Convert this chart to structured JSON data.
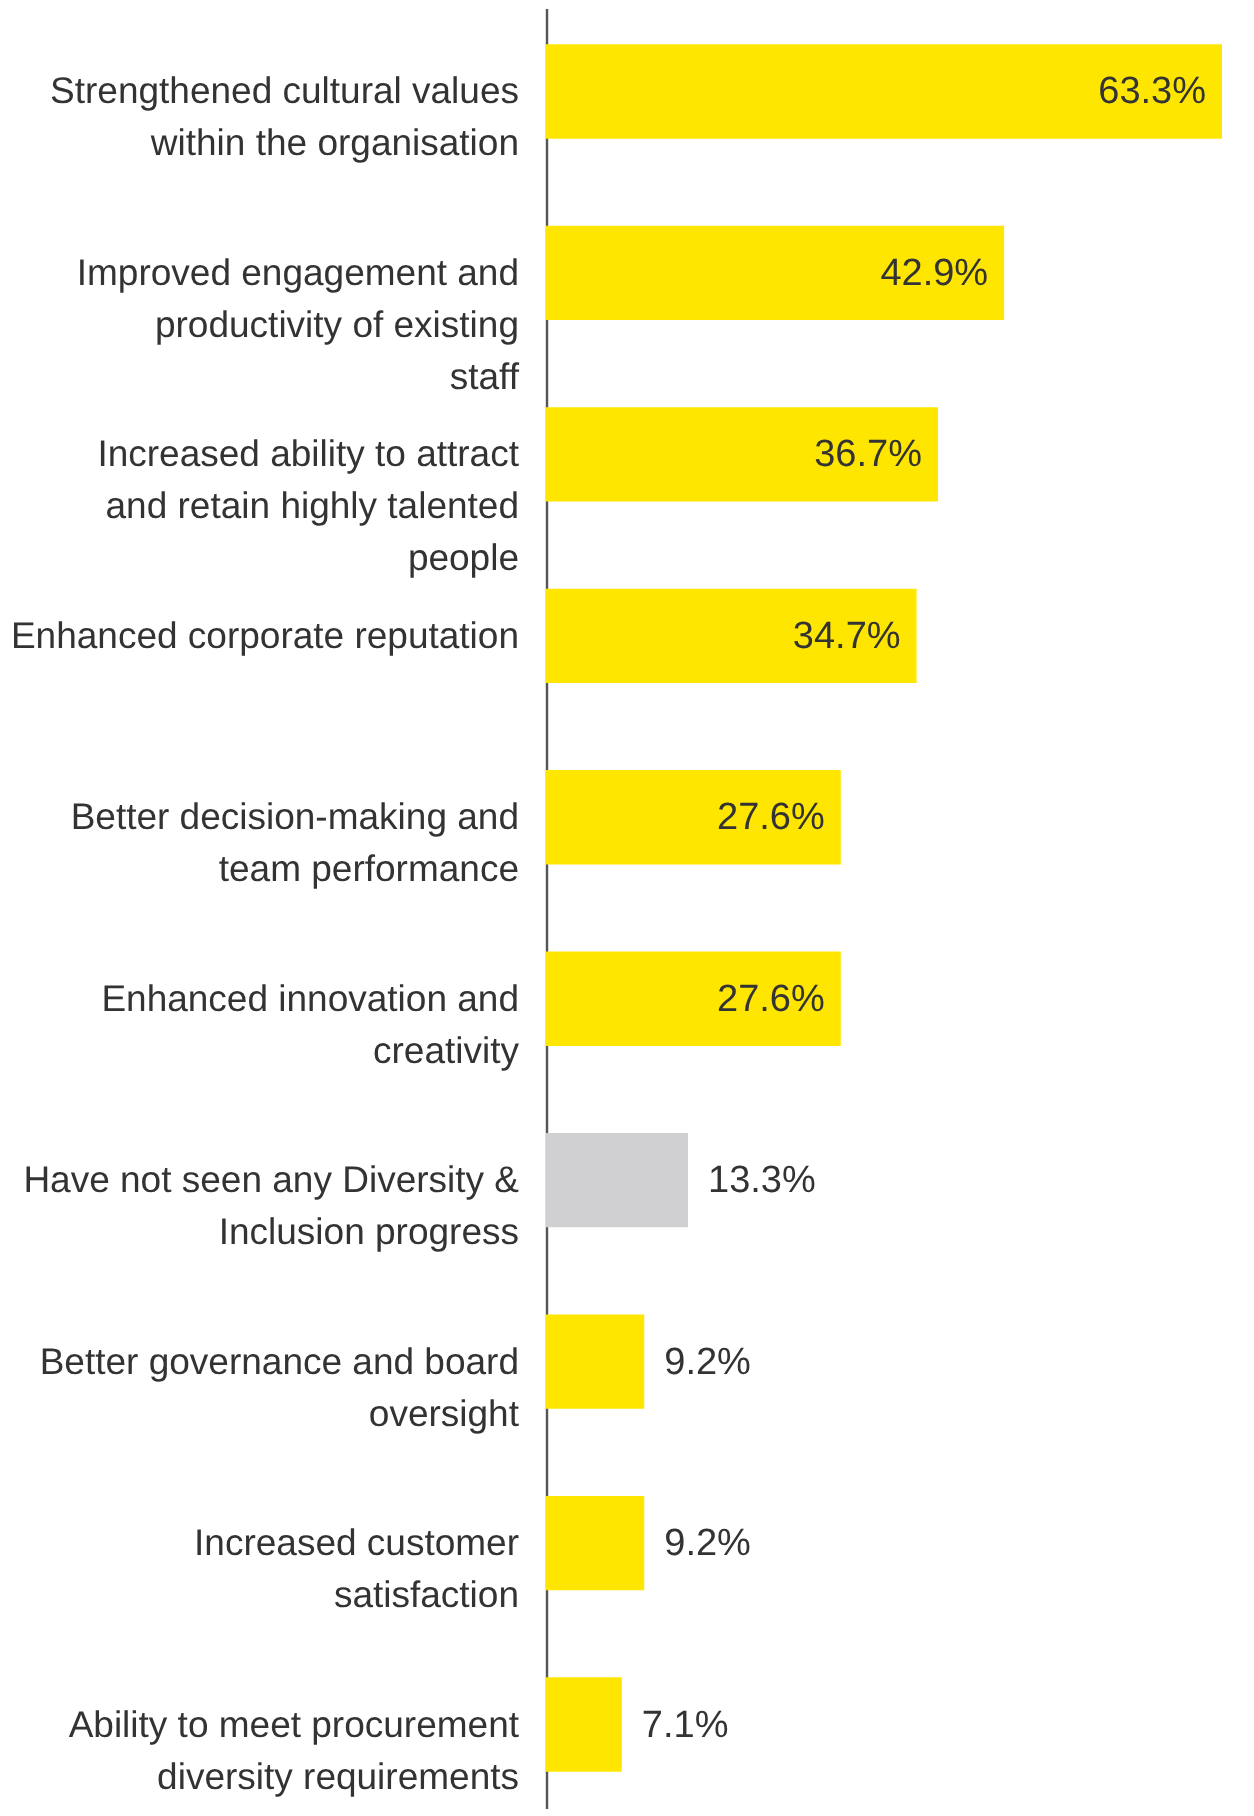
{
  "chart_data": {
    "type": "bar",
    "orientation": "horizontal",
    "grid": false,
    "value_labels": [
      "63.3%",
      "42.9%",
      "36.7%",
      "34.7%",
      "27.6%",
      "27.6%",
      "13.3%",
      "9.2%",
      "9.2%",
      "7.1%"
    ],
    "categories": [
      "Strengthened cultural values within the organisation",
      "Improved engagement and productivity of existing staff",
      "Increased ability to attract and retain highly talented people",
      "Enhanced corporate reputation",
      "Better decision-making and team performance",
      "Enhanced innovation and creativity",
      "Have not seen any Diversity & Inclusion progress",
      "Better governance and board oversight",
      "Increased customer satisfaction",
      "Ability to meet procurement diversity requirements"
    ],
    "values": [
      63.3,
      42.9,
      36.7,
      34.7,
      27.6,
      27.6,
      13.3,
      9.2,
      9.2,
      7.1
    ],
    "colors": [
      "#ffe600",
      "#ffe600",
      "#ffe600",
      "#ffe600",
      "#ffe600",
      "#ffe600",
      "#d0d0d2",
      "#ffe600",
      "#ffe600",
      "#ffe600"
    ]
  }
}
